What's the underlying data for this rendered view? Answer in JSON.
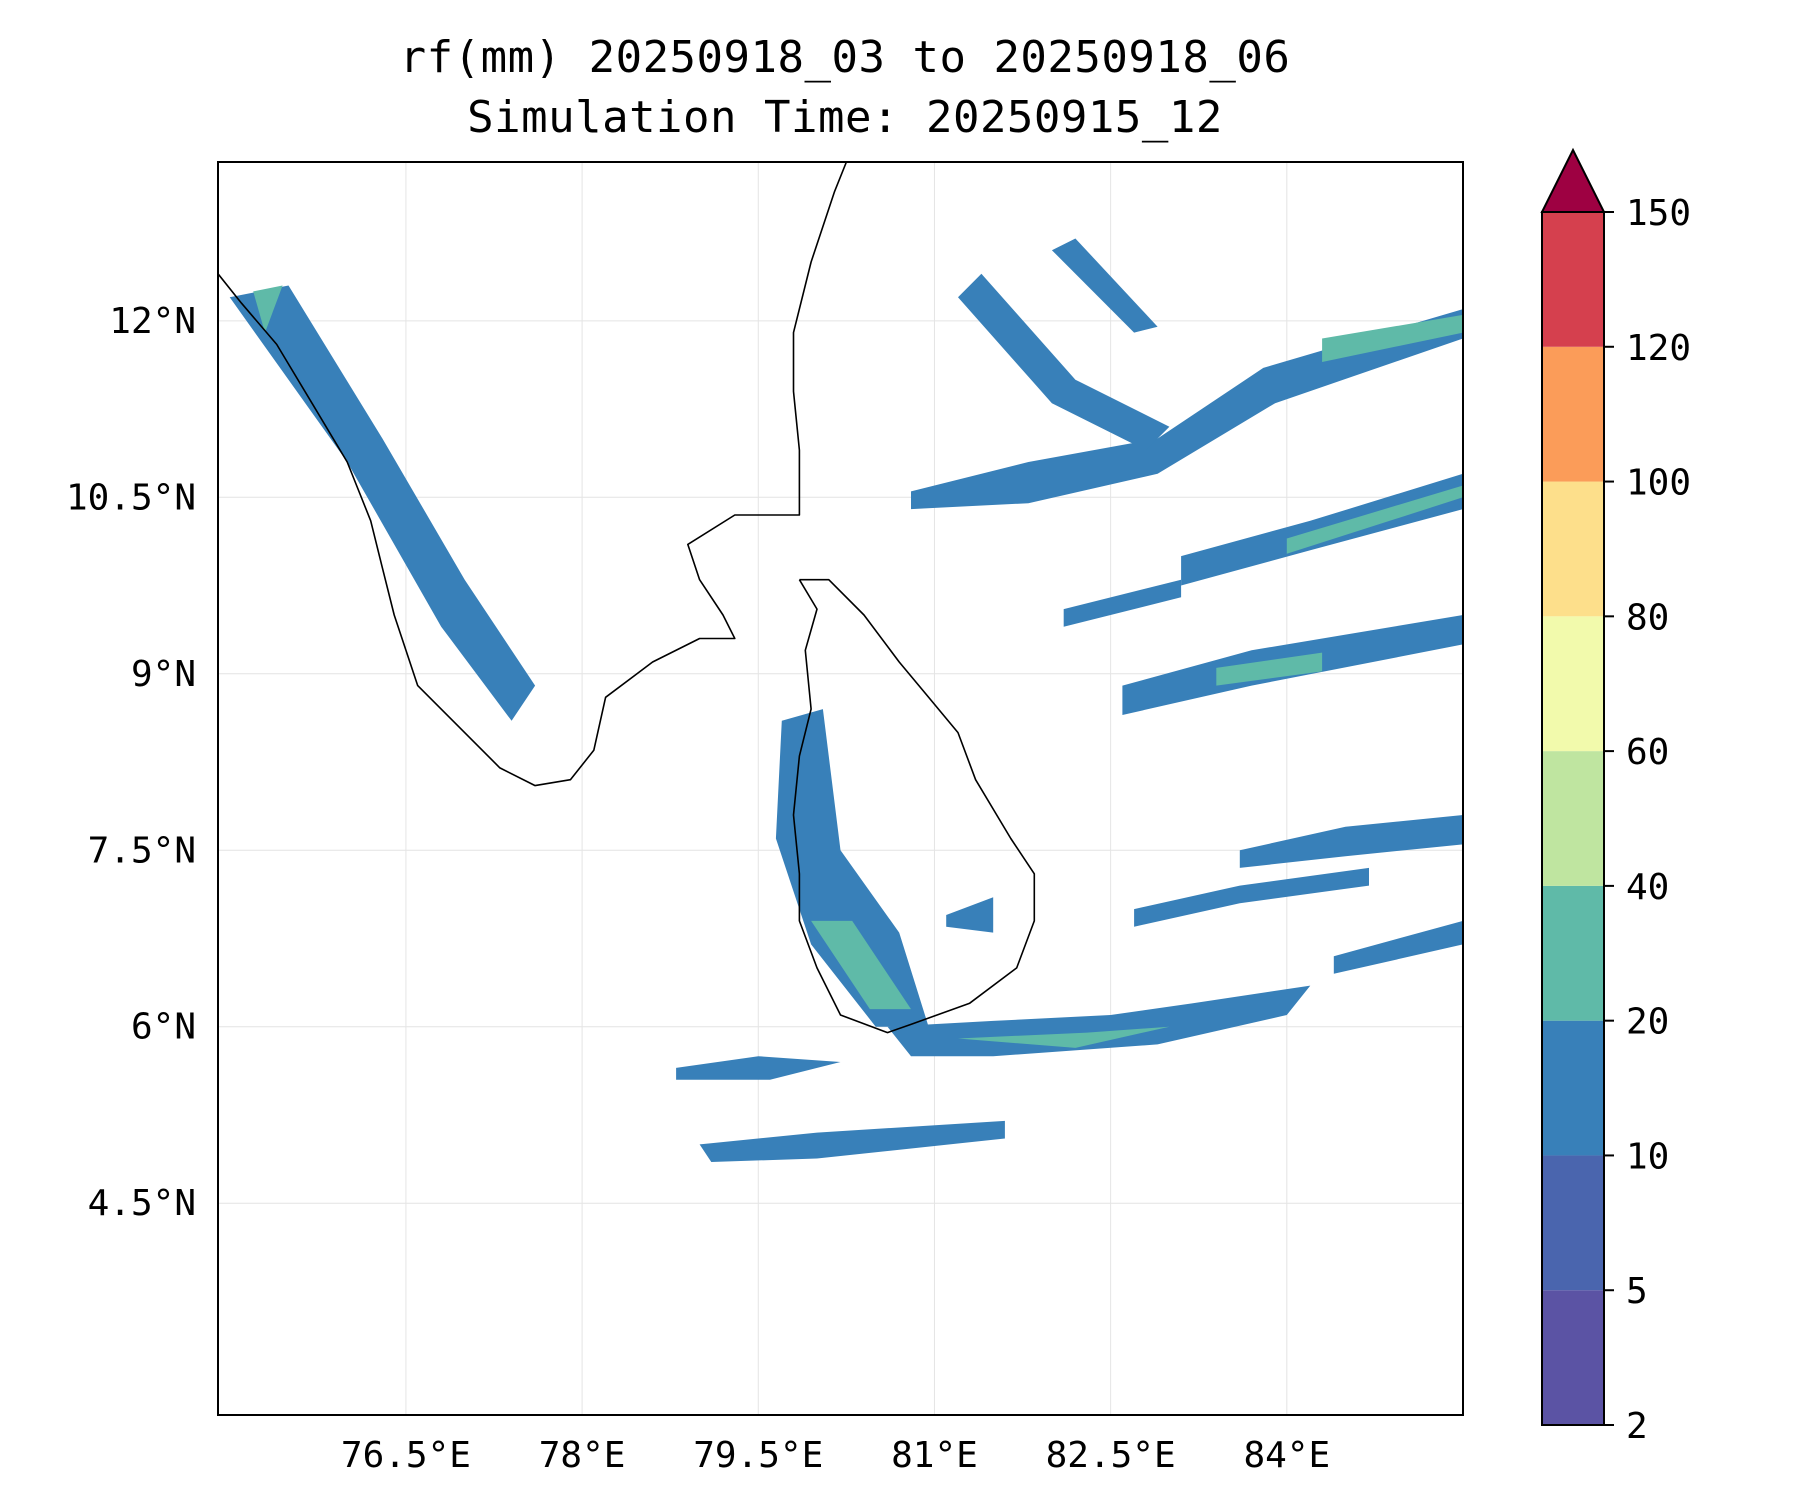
{
  "title": {
    "line1": "rf(mm) 20250918_03 to 20250918_06",
    "line2": "Simulation Time: 20250915_12"
  },
  "axes": {
    "lon_range": [
      74.9,
      85.5
    ],
    "lat_range": [
      2.7,
      13.35
    ],
    "x_ticks": [
      {
        "value": 76.5,
        "label": "76.5°E"
      },
      {
        "value": 78.0,
        "label": "78°E"
      },
      {
        "value": 79.5,
        "label": "79.5°E"
      },
      {
        "value": 81.0,
        "label": "81°E"
      },
      {
        "value": 82.5,
        "label": "82.5°E"
      },
      {
        "value": 84.0,
        "label": "84°E"
      }
    ],
    "y_ticks": [
      {
        "value": 12.0,
        "label": "12°N"
      },
      {
        "value": 10.5,
        "label": "10.5°N"
      },
      {
        "value": 9.0,
        "label": "9°N"
      },
      {
        "value": 7.5,
        "label": "7.5°N"
      },
      {
        "value": 6.0,
        "label": "6°N"
      },
      {
        "value": 4.5,
        "label": "4.5°N"
      }
    ],
    "grid": true
  },
  "colorbar": {
    "extend": "max",
    "extend_color": "#9e0142",
    "levels": [
      {
        "from": 2,
        "to": 5,
        "color": "#5b53a4"
      },
      {
        "from": 5,
        "to": 10,
        "color": "#4a65ae"
      },
      {
        "from": 10,
        "to": 20,
        "color": "#3880b9"
      },
      {
        "from": 20,
        "to": 40,
        "color": "#5fbaa8"
      },
      {
        "from": 40,
        "to": 60,
        "color": "#bfe5a0"
      },
      {
        "from": 60,
        "to": 80,
        "color": "#f2faac"
      },
      {
        "from": 80,
        "to": 100,
        "color": "#fddf8b"
      },
      {
        "from": 100,
        "to": 120,
        "color": "#fb9c59"
      },
      {
        "from": 120,
        "to": 150,
        "color": "#d5404e"
      }
    ],
    "tick_labels": [
      "2",
      "5",
      "10",
      "20",
      "40",
      "60",
      "80",
      "100",
      "120",
      "150"
    ]
  },
  "rain_features": [
    {
      "name": "west-coast-band",
      "level": 10,
      "pts": [
        [
          75.0,
          12.2
        ],
        [
          75.5,
          12.3
        ],
        [
          76.3,
          11.0
        ],
        [
          77.0,
          9.8
        ],
        [
          77.6,
          8.9
        ],
        [
          77.4,
          8.6
        ],
        [
          76.8,
          9.4
        ],
        [
          76.0,
          10.8
        ]
      ]
    },
    {
      "name": "west-coast-core",
      "level": 20,
      "pts": [
        [
          75.2,
          12.25
        ],
        [
          75.45,
          12.3
        ],
        [
          75.3,
          11.9
        ]
      ]
    },
    {
      "name": "sri-lanka-west",
      "level": 10,
      "pts": [
        [
          79.7,
          8.6
        ],
        [
          80.05,
          8.7
        ],
        [
          80.2,
          7.5
        ],
        [
          80.7,
          6.8
        ],
        [
          80.95,
          6.0
        ],
        [
          80.5,
          6.0
        ],
        [
          79.95,
          6.7
        ],
        [
          79.65,
          7.6
        ]
      ]
    },
    {
      "name": "sri-lanka-west-core",
      "level": 20,
      "pts": [
        [
          79.95,
          6.9
        ],
        [
          80.3,
          6.9
        ],
        [
          80.8,
          6.15
        ],
        [
          80.45,
          6.15
        ]
      ]
    },
    {
      "name": "southern-arc",
      "level": 10,
      "pts": [
        [
          80.6,
          6.0
        ],
        [
          81.5,
          6.05
        ],
        [
          82.5,
          6.1
        ],
        [
          83.2,
          6.2
        ],
        [
          84.2,
          6.35
        ],
        [
          84.0,
          6.1
        ],
        [
          82.9,
          5.85
        ],
        [
          81.5,
          5.75
        ],
        [
          80.8,
          5.75
        ]
      ]
    },
    {
      "name": "southern-arc-core",
      "level": 20,
      "pts": [
        [
          81.2,
          5.9
        ],
        [
          82.3,
          5.95
        ],
        [
          83.0,
          6.0
        ],
        [
          82.2,
          5.82
        ]
      ]
    },
    {
      "name": "south-band-1",
      "level": 10,
      "pts": [
        [
          79.0,
          5.0
        ],
        [
          80.0,
          5.1
        ],
        [
          81.6,
          5.2
        ],
        [
          81.6,
          5.05
        ],
        [
          80.0,
          4.88
        ],
        [
          79.1,
          4.85
        ]
      ]
    },
    {
      "name": "south-band-2",
      "level": 10,
      "pts": [
        [
          78.8,
          5.65
        ],
        [
          79.5,
          5.75
        ],
        [
          80.2,
          5.7
        ],
        [
          79.6,
          5.55
        ],
        [
          78.8,
          5.55
        ]
      ]
    },
    {
      "name": "east-band-1",
      "level": 10,
      "pts": [
        [
          80.8,
          10.55
        ],
        [
          81.8,
          10.8
        ],
        [
          82.9,
          11.0
        ],
        [
          83.8,
          11.6
        ],
        [
          85.5,
          12.1
        ],
        [
          85.5,
          11.85
        ],
        [
          83.9,
          11.3
        ],
        [
          82.9,
          10.7
        ],
        [
          81.8,
          10.45
        ],
        [
          80.8,
          10.4
        ]
      ]
    },
    {
      "name": "east-band-1-core",
      "level": 20,
      "pts": [
        [
          84.3,
          11.85
        ],
        [
          85.5,
          12.05
        ],
        [
          85.5,
          11.9
        ],
        [
          84.3,
          11.65
        ]
      ]
    },
    {
      "name": "east-band-2",
      "level": 10,
      "pts": [
        [
          83.1,
          10.0
        ],
        [
          84.2,
          10.3
        ],
        [
          85.5,
          10.7
        ],
        [
          85.5,
          10.4
        ],
        [
          84.2,
          10.05
        ],
        [
          83.1,
          9.75
        ]
      ]
    },
    {
      "name": "east-band-2-core",
      "level": 20,
      "pts": [
        [
          84.0,
          10.15
        ],
        [
          85.5,
          10.6
        ],
        [
          85.5,
          10.5
        ],
        [
          84.0,
          10.02
        ]
      ]
    },
    {
      "name": "east-band-3",
      "level": 10,
      "pts": [
        [
          82.6,
          8.9
        ],
        [
          83.7,
          9.2
        ],
        [
          85.5,
          9.5
        ],
        [
          85.5,
          9.25
        ],
        [
          83.7,
          8.9
        ],
        [
          82.6,
          8.65
        ]
      ]
    },
    {
      "name": "east-band-3-core",
      "level": 20,
      "pts": [
        [
          83.4,
          9.05
        ],
        [
          84.3,
          9.18
        ],
        [
          84.3,
          9.02
        ],
        [
          83.4,
          8.9
        ]
      ]
    },
    {
      "name": "east-band-4",
      "level": 10,
      "pts": [
        [
          82.1,
          9.55
        ],
        [
          83.1,
          9.8
        ],
        [
          83.1,
          9.65
        ],
        [
          82.1,
          9.4
        ]
      ]
    },
    {
      "name": "east-band-5",
      "level": 10,
      "pts": [
        [
          83.6,
          7.5
        ],
        [
          84.5,
          7.7
        ],
        [
          85.5,
          7.8
        ],
        [
          85.5,
          7.55
        ],
        [
          84.5,
          7.45
        ],
        [
          83.6,
          7.35
        ]
      ]
    },
    {
      "name": "east-band-6",
      "level": 10,
      "pts": [
        [
          82.7,
          7.0
        ],
        [
          83.6,
          7.2
        ],
        [
          84.7,
          7.35
        ],
        [
          84.7,
          7.2
        ],
        [
          83.6,
          7.05
        ],
        [
          82.7,
          6.85
        ]
      ]
    },
    {
      "name": "east-band-7",
      "level": 10,
      "pts": [
        [
          84.4,
          6.6
        ],
        [
          85.5,
          6.9
        ],
        [
          85.5,
          6.7
        ],
        [
          84.4,
          6.45
        ]
      ]
    },
    {
      "name": "northeast-streaks",
      "level": 10,
      "pts": [
        [
          81.4,
          12.4
        ],
        [
          82.2,
          11.5
        ],
        [
          83.0,
          11.1
        ],
        [
          82.8,
          10.9
        ],
        [
          82.0,
          11.3
        ],
        [
          81.2,
          12.2
        ]
      ]
    },
    {
      "name": "northeast-streaks-2",
      "level": 10,
      "pts": [
        [
          82.0,
          12.6
        ],
        [
          82.7,
          11.9
        ],
        [
          82.9,
          11.95
        ],
        [
          82.2,
          12.7
        ]
      ]
    },
    {
      "name": "south-sri-lanka-cell",
      "level": 10,
      "pts": [
        [
          81.1,
          6.95
        ],
        [
          81.5,
          7.1
        ],
        [
          81.5,
          6.8
        ],
        [
          81.1,
          6.85
        ]
      ]
    }
  ]
}
